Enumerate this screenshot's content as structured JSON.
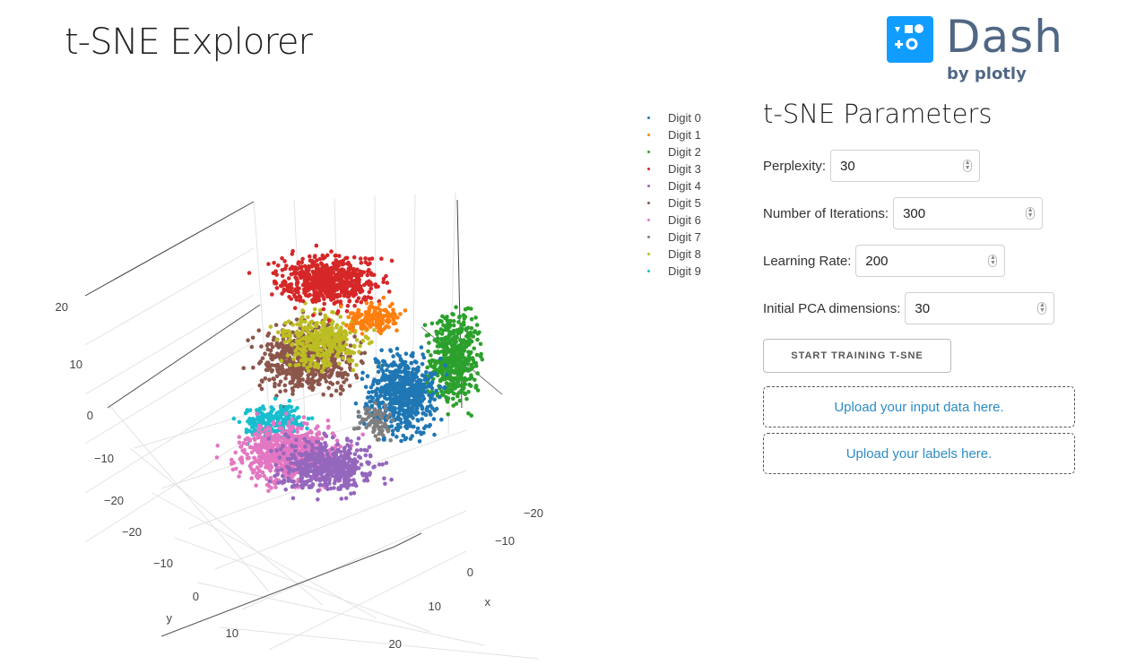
{
  "app": {
    "title": "t-SNE Explorer"
  },
  "logo": {
    "word": "Dash",
    "sub": "by plotly"
  },
  "colors": {
    "brand": "#119dff",
    "brand_text": "#506784",
    "link": "#2d8cc4"
  },
  "legend": [
    {
      "label": "Digit 0",
      "color": "#1f77b4"
    },
    {
      "label": "Digit 1",
      "color": "#ff7f0e"
    },
    {
      "label": "Digit 2",
      "color": "#2ca02c"
    },
    {
      "label": "Digit 3",
      "color": "#d62728"
    },
    {
      "label": "Digit 4",
      "color": "#9467bd"
    },
    {
      "label": "Digit 5",
      "color": "#8c564b"
    },
    {
      "label": "Digit 6",
      "color": "#e377c2"
    },
    {
      "label": "Digit 7",
      "color": "#7f7f7f"
    },
    {
      "label": "Digit 8",
      "color": "#bcbd22"
    },
    {
      "label": "Digit 9",
      "color": "#17becf"
    }
  ],
  "plot": {
    "axis_titles": {
      "x": "x",
      "y": "y"
    },
    "z_ticks": [
      "20",
      "10",
      "0",
      "−10",
      "−20"
    ],
    "x_ticks": [
      "−20",
      "−10",
      "0",
      "10",
      "20"
    ],
    "y_ticks": [
      "−20",
      "−10",
      "0",
      "10"
    ]
  },
  "panel": {
    "title": "t-SNE Parameters",
    "params": [
      {
        "label": "Perplexity:",
        "value": "30"
      },
      {
        "label": "Number of Iterations:",
        "value": "300"
      },
      {
        "label": "Learning Rate:",
        "value": "200"
      },
      {
        "label": "Initial PCA dimensions:",
        "value": "30"
      }
    ],
    "start_button": "START TRAINING T-SNE",
    "upload_data": "Upload your input data here.",
    "upload_labels": "Upload your labels here."
  }
}
